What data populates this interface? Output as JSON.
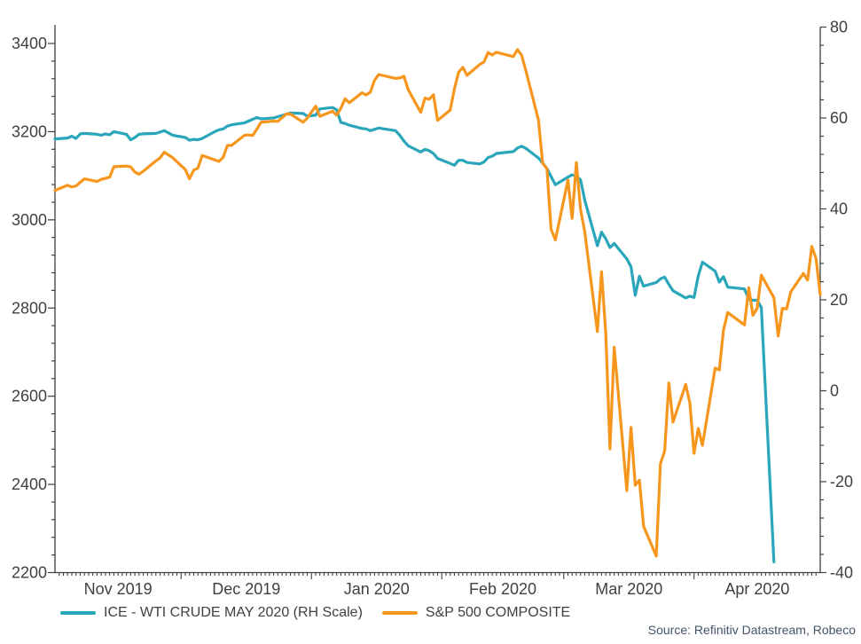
{
  "chart_data": {
    "type": "line",
    "title": "",
    "source": "Source: Refinitiv Datastream, Robeco",
    "colors": {
      "wti": "#29A6BA",
      "sp500": "#F7961D",
      "axis": "#404040",
      "source_text": "#44546A"
    },
    "left_axis": {
      "min": 2200,
      "max": 3400,
      "major_step": 200,
      "minor_step": 40,
      "labels": [
        3400,
        3200,
        3000,
        2800,
        2600,
        2400,
        2200
      ]
    },
    "right_axis": {
      "min": -40,
      "max": 80,
      "major_step": 20,
      "minor_step": 4,
      "labels": [
        80,
        60,
        40,
        20,
        0,
        -20,
        -40
      ]
    },
    "x_axis": {
      "start": "2019-11-01",
      "end": "2020-05-01",
      "months": [
        {
          "label": "Nov 2019",
          "year_month": "2019-11"
        },
        {
          "label": "Dec 2019",
          "year_month": "2019-12"
        },
        {
          "label": "Jan 2020",
          "year_month": "2020-01"
        },
        {
          "label": "Feb 2020",
          "year_month": "2020-02"
        },
        {
          "label": "Mar 2020",
          "year_month": "2020-03"
        },
        {
          "label": "Apr 2020",
          "year_month": "2020-04"
        }
      ]
    },
    "series": [
      {
        "name": "ICE - WTI CRUDE MAY 2020 (RH Scale)",
        "axis": "right",
        "color_key": "wti",
        "points": [
          [
            "2019-11-01",
            55.4
          ],
          [
            "2019-11-04",
            55.6
          ],
          [
            "2019-11-05",
            56.0
          ],
          [
            "2019-11-06",
            55.5
          ],
          [
            "2019-11-07",
            56.5
          ],
          [
            "2019-11-08",
            56.6
          ],
          [
            "2019-11-11",
            56.4
          ],
          [
            "2019-11-12",
            56.2
          ],
          [
            "2019-11-13",
            56.5
          ],
          [
            "2019-11-14",
            56.3
          ],
          [
            "2019-11-15",
            57.0
          ],
          [
            "2019-11-18",
            56.4
          ],
          [
            "2019-11-19",
            55.2
          ],
          [
            "2019-11-20",
            55.7
          ],
          [
            "2019-11-21",
            56.4
          ],
          [
            "2019-11-22",
            56.5
          ],
          [
            "2019-11-25",
            56.6
          ],
          [
            "2019-11-26",
            56.9
          ],
          [
            "2019-11-27",
            57.2
          ],
          [
            "2019-11-29",
            56.2
          ],
          [
            "2019-12-02",
            55.7
          ],
          [
            "2019-12-03",
            55.1
          ],
          [
            "2019-12-04",
            55.3
          ],
          [
            "2019-12-05",
            55.2
          ],
          [
            "2019-12-06",
            55.5
          ],
          [
            "2019-12-09",
            57.0
          ],
          [
            "2019-12-10",
            57.4
          ],
          [
            "2019-12-11",
            57.6
          ],
          [
            "2019-12-12",
            58.2
          ],
          [
            "2019-12-13",
            58.5
          ],
          [
            "2019-12-16",
            58.9
          ],
          [
            "2019-12-17",
            59.3
          ],
          [
            "2019-12-18",
            59.7
          ],
          [
            "2019-12-19",
            60.1
          ],
          [
            "2019-12-20",
            59.8
          ],
          [
            "2019-12-23",
            60.0
          ],
          [
            "2019-12-24",
            60.3
          ],
          [
            "2019-12-26",
            60.8
          ],
          [
            "2019-12-27",
            61.1
          ],
          [
            "2019-12-30",
            61.0
          ],
          [
            "2019-12-31",
            60.4
          ],
          [
            "2020-01-02",
            60.6
          ],
          [
            "2020-01-03",
            62.0
          ],
          [
            "2020-01-06",
            62.3
          ],
          [
            "2020-01-07",
            61.8
          ],
          [
            "2020-01-08",
            59.0
          ],
          [
            "2020-01-09",
            58.8
          ],
          [
            "2020-01-10",
            58.4
          ],
          [
            "2020-01-13",
            57.7
          ],
          [
            "2020-01-14",
            57.6
          ],
          [
            "2020-01-15",
            57.2
          ],
          [
            "2020-01-16",
            57.5
          ],
          [
            "2020-01-17",
            57.8
          ],
          [
            "2020-01-21",
            57.2
          ],
          [
            "2020-01-22",
            56.2
          ],
          [
            "2020-01-23",
            54.9
          ],
          [
            "2020-01-24",
            53.9
          ],
          [
            "2020-01-27",
            52.5
          ],
          [
            "2020-01-28",
            53.1
          ],
          [
            "2020-01-29",
            52.8
          ],
          [
            "2020-01-30",
            52.2
          ],
          [
            "2020-01-31",
            51.1
          ],
          [
            "2020-02-03",
            50.0
          ],
          [
            "2020-02-04",
            49.6
          ],
          [
            "2020-02-05",
            50.7
          ],
          [
            "2020-02-06",
            50.7
          ],
          [
            "2020-02-07",
            50.2
          ],
          [
            "2020-02-10",
            49.9
          ],
          [
            "2020-02-11",
            50.3
          ],
          [
            "2020-02-12",
            51.3
          ],
          [
            "2020-02-13",
            51.6
          ],
          [
            "2020-02-14",
            52.2
          ],
          [
            "2020-02-18",
            52.6
          ],
          [
            "2020-02-19",
            53.4
          ],
          [
            "2020-02-20",
            53.8
          ],
          [
            "2020-02-21",
            53.3
          ],
          [
            "2020-02-24",
            51.2
          ],
          [
            "2020-02-25",
            50.1
          ],
          [
            "2020-02-26",
            48.9
          ],
          [
            "2020-02-27",
            47.1
          ],
          [
            "2020-02-28",
            45.3
          ],
          [
            "2020-03-02",
            47.0
          ],
          [
            "2020-03-03",
            47.5
          ],
          [
            "2020-03-04",
            47.2
          ],
          [
            "2020-03-05",
            46.4
          ],
          [
            "2020-03-06",
            41.9
          ],
          [
            "2020-03-09",
            31.9
          ],
          [
            "2020-03-10",
            34.9
          ],
          [
            "2020-03-11",
            33.4
          ],
          [
            "2020-03-12",
            31.5
          ],
          [
            "2020-03-13",
            32.4
          ],
          [
            "2020-03-16",
            29.0
          ],
          [
            "2020-03-17",
            27.3
          ],
          [
            "2020-03-18",
            21.0
          ],
          [
            "2020-03-19",
            25.2
          ],
          [
            "2020-03-20",
            23.0
          ],
          [
            "2020-03-23",
            23.8
          ],
          [
            "2020-03-24",
            24.6
          ],
          [
            "2020-03-25",
            25.0
          ],
          [
            "2020-03-26",
            23.4
          ],
          [
            "2020-03-27",
            22.0
          ],
          [
            "2020-03-30",
            20.4
          ],
          [
            "2020-03-31",
            20.8
          ],
          [
            "2020-04-01",
            20.5
          ],
          [
            "2020-04-02",
            25.3
          ],
          [
            "2020-04-03",
            28.3
          ],
          [
            "2020-04-06",
            26.3
          ],
          [
            "2020-04-07",
            23.9
          ],
          [
            "2020-04-08",
            25.1
          ],
          [
            "2020-04-09",
            22.8
          ],
          [
            "2020-04-13",
            22.4
          ],
          [
            "2020-04-14",
            20.1
          ],
          [
            "2020-04-15",
            19.9
          ],
          [
            "2020-04-16",
            19.9
          ],
          [
            "2020-04-17",
            18.3
          ],
          [
            "2020-04-20",
            -37.63
          ]
        ]
      },
      {
        "name": "S&P 500 COMPOSITE",
        "axis": "left",
        "color_key": "sp500",
        "points": [
          [
            "2019-11-01",
            3066.91
          ],
          [
            "2019-11-04",
            3078.27
          ],
          [
            "2019-11-05",
            3074.62
          ],
          [
            "2019-11-06",
            3076.78
          ],
          [
            "2019-11-07",
            3085.18
          ],
          [
            "2019-11-08",
            3093.08
          ],
          [
            "2019-11-11",
            3087.01
          ],
          [
            "2019-11-12",
            3091.84
          ],
          [
            "2019-11-13",
            3094.04
          ],
          [
            "2019-11-14",
            3096.63
          ],
          [
            "2019-11-15",
            3120.46
          ],
          [
            "2019-11-18",
            3122.03
          ],
          [
            "2019-11-19",
            3120.18
          ],
          [
            "2019-11-20",
            3108.46
          ],
          [
            "2019-11-21",
            3103.54
          ],
          [
            "2019-11-22",
            3110.29
          ],
          [
            "2019-11-25",
            3133.64
          ],
          [
            "2019-11-26",
            3140.52
          ],
          [
            "2019-11-27",
            3153.63
          ],
          [
            "2019-11-29",
            3140.98
          ],
          [
            "2019-12-02",
            3113.87
          ],
          [
            "2019-12-03",
            3093.2
          ],
          [
            "2019-12-04",
            3112.76
          ],
          [
            "2019-12-05",
            3117.43
          ],
          [
            "2019-12-06",
            3145.91
          ],
          [
            "2019-12-09",
            3135.96
          ],
          [
            "2019-12-10",
            3132.52
          ],
          [
            "2019-12-11",
            3141.63
          ],
          [
            "2019-12-12",
            3168.57
          ],
          [
            "2019-12-13",
            3168.8
          ],
          [
            "2019-12-16",
            3191.45
          ],
          [
            "2019-12-17",
            3192.52
          ],
          [
            "2019-12-18",
            3191.14
          ],
          [
            "2019-12-19",
            3205.37
          ],
          [
            "2019-12-20",
            3221.22
          ],
          [
            "2019-12-23",
            3224.01
          ],
          [
            "2019-12-24",
            3223.38
          ],
          [
            "2019-12-26",
            3239.91
          ],
          [
            "2019-12-27",
            3240.02
          ],
          [
            "2019-12-30",
            3221.29
          ],
          [
            "2019-12-31",
            3230.78
          ],
          [
            "2020-01-02",
            3257.85
          ],
          [
            "2020-01-03",
            3234.85
          ],
          [
            "2020-01-06",
            3246.28
          ],
          [
            "2020-01-07",
            3237.18
          ],
          [
            "2020-01-08",
            3253.05
          ],
          [
            "2020-01-09",
            3274.7
          ],
          [
            "2020-01-10",
            3265.35
          ],
          [
            "2020-01-13",
            3288.13
          ],
          [
            "2020-01-14",
            3283.15
          ],
          [
            "2020-01-15",
            3289.29
          ],
          [
            "2020-01-16",
            3316.81
          ],
          [
            "2020-01-17",
            3329.62
          ],
          [
            "2020-01-21",
            3320.79
          ],
          [
            "2020-01-22",
            3321.75
          ],
          [
            "2020-01-23",
            3325.54
          ],
          [
            "2020-01-24",
            3295.47
          ],
          [
            "2020-01-27",
            3243.63
          ],
          [
            "2020-01-28",
            3276.24
          ],
          [
            "2020-01-29",
            3273.4
          ],
          [
            "2020-01-30",
            3283.66
          ],
          [
            "2020-01-31",
            3225.52
          ],
          [
            "2020-02-03",
            3248.92
          ],
          [
            "2020-02-04",
            3297.59
          ],
          [
            "2020-02-05",
            3334.69
          ],
          [
            "2020-02-06",
            3345.78
          ],
          [
            "2020-02-07",
            3327.71
          ],
          [
            "2020-02-10",
            3352.09
          ],
          [
            "2020-02-11",
            3357.75
          ],
          [
            "2020-02-12",
            3379.45
          ],
          [
            "2020-02-13",
            3373.94
          ],
          [
            "2020-02-14",
            3380.16
          ],
          [
            "2020-02-18",
            3370.29
          ],
          [
            "2020-02-19",
            3386.15
          ],
          [
            "2020-02-20",
            3373.23
          ],
          [
            "2020-02-21",
            3337.75
          ],
          [
            "2020-02-24",
            3225.89
          ],
          [
            "2020-02-25",
            3128.21
          ],
          [
            "2020-02-26",
            3116.39
          ],
          [
            "2020-02-27",
            2978.76
          ],
          [
            "2020-02-28",
            2954.22
          ],
          [
            "2020-03-02",
            3090.23
          ],
          [
            "2020-03-03",
            3003.37
          ],
          [
            "2020-03-04",
            3130.12
          ],
          [
            "2020-03-05",
            3023.94
          ],
          [
            "2020-03-06",
            2972.37
          ],
          [
            "2020-03-09",
            2746.56
          ],
          [
            "2020-03-10",
            2882.23
          ],
          [
            "2020-03-11",
            2741.38
          ],
          [
            "2020-03-12",
            2480.64
          ],
          [
            "2020-03-13",
            2711.02
          ],
          [
            "2020-03-16",
            2386.13
          ],
          [
            "2020-03-17",
            2529.19
          ],
          [
            "2020-03-18",
            2398.1
          ],
          [
            "2020-03-19",
            2409.39
          ],
          [
            "2020-03-20",
            2304.92
          ],
          [
            "2020-03-23",
            2237.4
          ],
          [
            "2020-03-24",
            2447.33
          ],
          [
            "2020-03-25",
            2475.56
          ],
          [
            "2020-03-26",
            2630.07
          ],
          [
            "2020-03-27",
            2541.47
          ],
          [
            "2020-03-30",
            2626.65
          ],
          [
            "2020-03-31",
            2584.59
          ],
          [
            "2020-04-01",
            2470.5
          ],
          [
            "2020-04-02",
            2526.9
          ],
          [
            "2020-04-03",
            2488.65
          ],
          [
            "2020-04-06",
            2663.68
          ],
          [
            "2020-04-07",
            2659.41
          ],
          [
            "2020-04-08",
            2749.98
          ],
          [
            "2020-04-09",
            2789.82
          ],
          [
            "2020-04-13",
            2761.63
          ],
          [
            "2020-04-14",
            2846.06
          ],
          [
            "2020-04-15",
            2783.36
          ],
          [
            "2020-04-16",
            2799.55
          ],
          [
            "2020-04-17",
            2874.56
          ],
          [
            "2020-04-20",
            2823.16
          ],
          [
            "2020-04-21",
            2736.56
          ],
          [
            "2020-04-22",
            2799.31
          ],
          [
            "2020-04-23",
            2797.8
          ],
          [
            "2020-04-24",
            2836.74
          ],
          [
            "2020-04-27",
            2878.48
          ],
          [
            "2020-04-28",
            2863.39
          ],
          [
            "2020-04-29",
            2939.51
          ],
          [
            "2020-04-30",
            2912.43
          ],
          [
            "2020-05-01",
            2830.71
          ]
        ]
      }
    ]
  }
}
